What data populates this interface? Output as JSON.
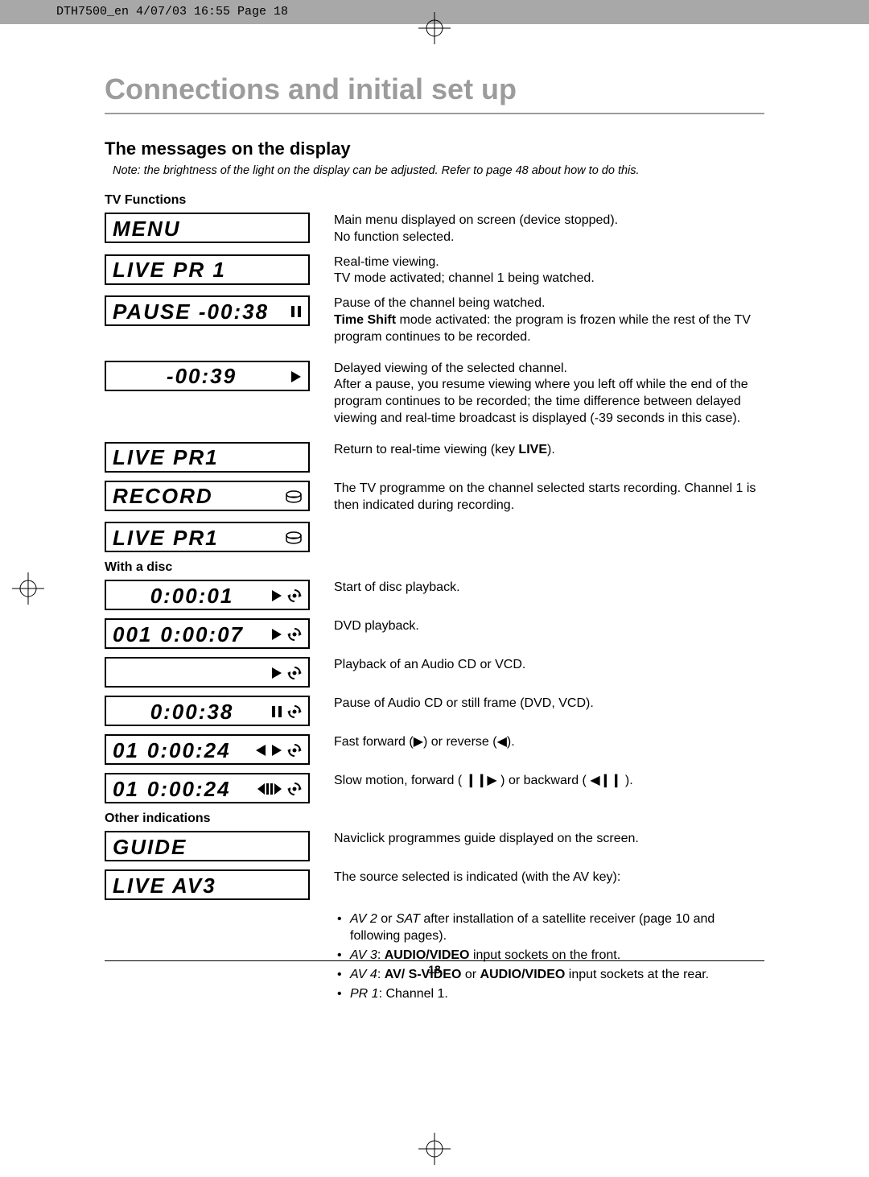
{
  "header_stamp": "DTH7500_en  4/07/03  16:55  Page 18",
  "title": "Connections and initial set up",
  "subtitle": "The messages on the display",
  "note": "Note: the brightness of the light on the display can be adjusted. Refer to page 48 about how to do this.",
  "page_number": "18",
  "tv_functions": {
    "label": "TV Functions",
    "rows": [
      {
        "display": "MENU",
        "align": "left",
        "icons": [],
        "desc_html": "Main menu displayed on screen (device stopped).<br>No function selected."
      },
      {
        "display": "LIVE PR 1",
        "align": "left",
        "icons": [],
        "desc_html": "Real-time viewing.<br>TV mode activated; channel 1 being watched."
      },
      {
        "display": "PAUSE  -00:38",
        "align": "left",
        "icons": [
          "pause"
        ],
        "desc_html": "Pause of the channel being watched.<br><b>Time Shift</b> mode activated: the program is frozen while the rest of the TV program continues to be recorded."
      },
      {
        "display": "-00:39",
        "align": "center",
        "icons": [
          "play"
        ],
        "desc_html": "Delayed viewing of the selected channel.<br>After a pause, you resume viewing where you left off while the end of the program continues to be recorded; the time difference between delayed viewing and real-time broadcast is displayed (-39 seconds in this case)."
      },
      {
        "display": "LIVE PR1",
        "align": "left",
        "icons": [],
        "desc_html": "Return to real-time viewing (key <b>LIVE</b>)."
      },
      {
        "display": "RECORD",
        "align": "left",
        "icons": [
          "disc"
        ],
        "desc_html": "The TV programme on the channel selected starts recording. Channel 1 is then indicated during recording.",
        "arrow_down": true
      },
      {
        "display": "LIVE PR1",
        "align": "left",
        "icons": [
          "disc"
        ],
        "desc_html": ""
      }
    ]
  },
  "with_disc": {
    "label": "With a disc",
    "rows": [
      {
        "track": "",
        "time": "0:00:01",
        "icons": [
          "play",
          "spin"
        ],
        "desc_html": "Start of disc playback."
      },
      {
        "track": "001",
        "time": "0:00:07",
        "icons": [
          "play",
          "spin"
        ],
        "desc_html": "DVD playback."
      },
      {
        "track": "",
        "time": "",
        "icons": [
          "play",
          "spin"
        ],
        "desc_html": "Playback of an Audio CD or VCD."
      },
      {
        "track": "",
        "time": "0:00:38",
        "icons": [
          "pause",
          "spin"
        ],
        "desc_html": "Pause of Audio CD or still frame (DVD, VCD)."
      },
      {
        "track": "01",
        "time": "0:00:24",
        "icons": [
          "rev",
          "play",
          "spin"
        ],
        "desc_html": "Fast forward (▶) or reverse (◀)."
      },
      {
        "track": "01",
        "time": "0:00:24",
        "icons": [
          "slowrev",
          "spin"
        ],
        "desc_html": "Slow motion, forward ( <b>❙❙</b>▶ ) or backward ( ◀<b>❙❙</b> )."
      }
    ]
  },
  "other": {
    "label": "Other indications",
    "rows": [
      {
        "display": "GUIDE",
        "desc_html": "Naviclick programmes guide displayed on the screen."
      },
      {
        "display": "LIVE  AV3",
        "desc_html": "The source selected is indicated (with the AV key):"
      }
    ],
    "sources": [
      {
        "code": "AV 2",
        "or_code": "SAT",
        "text": " after installation of a satellite receiver (page 10 and following pages)."
      },
      {
        "code": "AV 3",
        "text": ": <b>AUDIO/VIDEO</b> input sockets on the front."
      },
      {
        "code": "AV 4",
        "text": ": <b>AV/ S-VIDEO</b> or <b>AUDIO/VIDEO</b> input sockets at the rear."
      },
      {
        "code": "PR 1",
        "text": ": Channel 1."
      }
    ]
  },
  "colors": {
    "title_color": "#9c9c9c",
    "header_bg": "#a8a8a8",
    "text": "#000000",
    "bg": "#ffffff"
  }
}
